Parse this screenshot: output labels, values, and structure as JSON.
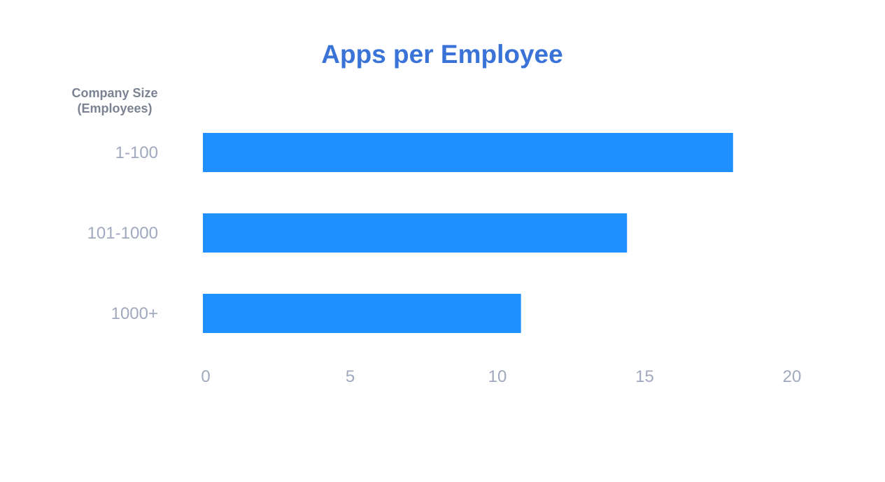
{
  "colors": {
    "title": "#3a73d8",
    "bar": "#1e90ff",
    "axis_title": "#7b8292",
    "label": "#a1a9bf",
    "background": "#ffffff"
  },
  "chart_data": {
    "type": "bar",
    "orientation": "horizontal",
    "title": "Apps per Employee",
    "ylabel_lines": [
      "Company Size",
      "(Employees)"
    ],
    "categories": [
      "1-100",
      "101-1000",
      "1000+"
    ],
    "values": [
      18,
      14.4,
      10.8
    ],
    "xlim": [
      0,
      20
    ],
    "xticks": [
      0,
      5,
      10,
      15,
      20
    ],
    "grid": false,
    "legend": "none"
  }
}
